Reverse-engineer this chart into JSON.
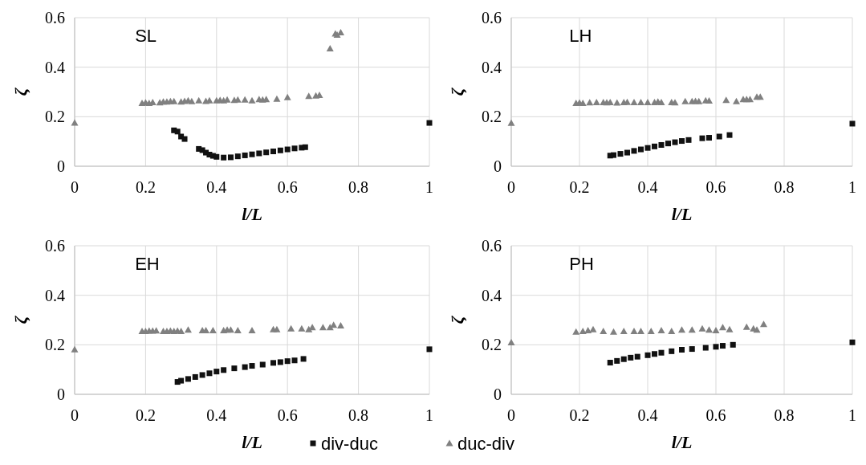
{
  "chart_data": [
    {
      "type": "scatter",
      "title": "SL",
      "xlabel": "l/L",
      "ylabel": "ζ",
      "xlim": [
        0,
        1
      ],
      "ylim": [
        0,
        0.6
      ],
      "xticks": [
        0,
        0.2,
        0.4,
        0.6,
        0.8,
        1
      ],
      "yticks": [
        0,
        0.2,
        0.4,
        0.6
      ],
      "grid": true,
      "series": [
        {
          "color": "#111111",
          "marker": "square",
          "x": [
            0.28,
            0.29,
            0.3,
            0.31,
            0.35,
            0.36,
            0.37,
            0.38,
            0.39,
            0.4,
            0.42,
            0.44,
            0.46,
            0.48,
            0.5,
            0.52,
            0.54,
            0.56,
            0.58,
            0.6,
            0.62,
            0.64,
            0.65,
            1.0
          ],
          "values": [
            0.145,
            0.14,
            0.12,
            0.11,
            0.07,
            0.065,
            0.055,
            0.047,
            0.042,
            0.038,
            0.035,
            0.036,
            0.04,
            0.044,
            0.048,
            0.052,
            0.056,
            0.06,
            0.064,
            0.068,
            0.072,
            0.075,
            0.077,
            0.175
          ]
        },
        {
          "color": "#808080",
          "marker": "triangle",
          "x": [
            0,
            0.19,
            0.2,
            0.21,
            0.22,
            0.24,
            0.25,
            0.26,
            0.27,
            0.28,
            0.3,
            0.31,
            0.32,
            0.33,
            0.35,
            0.37,
            0.38,
            0.4,
            0.41,
            0.42,
            0.43,
            0.45,
            0.46,
            0.48,
            0.5,
            0.52,
            0.53,
            0.54,
            0.57,
            0.6,
            0.66,
            0.68,
            0.69,
            0.72,
            0.735,
            0.74,
            0.75
          ],
          "values": [
            0.175,
            0.255,
            0.257,
            0.255,
            0.258,
            0.257,
            0.26,
            0.26,
            0.262,
            0.262,
            0.26,
            0.263,
            0.265,
            0.262,
            0.265,
            0.263,
            0.265,
            0.265,
            0.267,
            0.265,
            0.268,
            0.267,
            0.268,
            0.268,
            0.265,
            0.27,
            0.268,
            0.27,
            0.272,
            0.278,
            0.283,
            0.285,
            0.287,
            0.475,
            0.535,
            0.53,
            0.54
          ]
        }
      ]
    },
    {
      "type": "scatter",
      "title": "LH",
      "xlabel": "l/L",
      "ylabel": "ζ",
      "xlim": [
        0,
        1
      ],
      "ylim": [
        0,
        0.6
      ],
      "xticks": [
        0,
        0.2,
        0.4,
        0.6,
        0.8,
        1
      ],
      "yticks": [
        0,
        0.2,
        0.4,
        0.6
      ],
      "grid": true,
      "series": [
        {
          "color": "#111111",
          "marker": "square",
          "x": [
            0.29,
            0.3,
            0.32,
            0.34,
            0.36,
            0.38,
            0.4,
            0.42,
            0.44,
            0.46,
            0.48,
            0.5,
            0.52,
            0.56,
            0.58,
            0.61,
            0.64,
            1.0
          ],
          "values": [
            0.043,
            0.045,
            0.05,
            0.055,
            0.062,
            0.068,
            0.074,
            0.08,
            0.086,
            0.092,
            0.097,
            0.102,
            0.106,
            0.113,
            0.115,
            0.12,
            0.126,
            0.172
          ]
        },
        {
          "color": "#808080",
          "marker": "triangle",
          "x": [
            0,
            0.19,
            0.2,
            0.21,
            0.23,
            0.25,
            0.27,
            0.28,
            0.29,
            0.31,
            0.33,
            0.34,
            0.36,
            0.38,
            0.4,
            0.42,
            0.43,
            0.44,
            0.47,
            0.48,
            0.51,
            0.53,
            0.54,
            0.55,
            0.57,
            0.58,
            0.63,
            0.66,
            0.68,
            0.69,
            0.7,
            0.72,
            0.73
          ],
          "values": [
            0.174,
            0.255,
            0.256,
            0.255,
            0.257,
            0.258,
            0.258,
            0.257,
            0.258,
            0.256,
            0.258,
            0.259,
            0.258,
            0.258,
            0.258,
            0.258,
            0.26,
            0.258,
            0.258,
            0.257,
            0.262,
            0.262,
            0.263,
            0.262,
            0.265,
            0.264,
            0.267,
            0.262,
            0.27,
            0.27,
            0.27,
            0.28,
            0.28
          ]
        }
      ]
    },
    {
      "type": "scatter",
      "title": "EH",
      "xlabel": "l/L",
      "ylabel": "ζ",
      "xlim": [
        0,
        1
      ],
      "ylim": [
        0,
        0.6
      ],
      "xticks": [
        0,
        0.2,
        0.4,
        0.6,
        0.8,
        1
      ],
      "yticks": [
        0,
        0.2,
        0.4,
        0.6
      ],
      "grid": true,
      "legend": "bottom",
      "series": [
        {
          "name": "div-duc",
          "color": "#111111",
          "marker": "square",
          "x": [
            0.29,
            0.3,
            0.32,
            0.34,
            0.36,
            0.38,
            0.4,
            0.42,
            0.45,
            0.48,
            0.5,
            0.53,
            0.56,
            0.58,
            0.6,
            0.62,
            0.645,
            1.0
          ],
          "values": [
            0.05,
            0.055,
            0.062,
            0.07,
            0.078,
            0.085,
            0.092,
            0.098,
            0.105,
            0.11,
            0.115,
            0.12,
            0.127,
            0.13,
            0.134,
            0.137,
            0.143,
            0.182
          ]
        },
        {
          "name": "duc-div",
          "color": "#808080",
          "marker": "triangle",
          "x": [
            0,
            0.19,
            0.2,
            0.21,
            0.22,
            0.23,
            0.25,
            0.26,
            0.27,
            0.28,
            0.29,
            0.3,
            0.32,
            0.36,
            0.37,
            0.39,
            0.42,
            0.43,
            0.44,
            0.46,
            0.5,
            0.56,
            0.57,
            0.61,
            0.64,
            0.66,
            0.67,
            0.7,
            0.72,
            0.73,
            0.75
          ],
          "values": [
            0.181,
            0.255,
            0.255,
            0.256,
            0.256,
            0.257,
            0.255,
            0.255,
            0.256,
            0.255,
            0.256,
            0.255,
            0.26,
            0.258,
            0.258,
            0.258,
            0.258,
            0.26,
            0.26,
            0.258,
            0.258,
            0.262,
            0.262,
            0.265,
            0.265,
            0.262,
            0.27,
            0.27,
            0.27,
            0.28,
            0.277
          ]
        }
      ]
    },
    {
      "type": "scatter",
      "title": "PH",
      "xlabel": "l/L",
      "ylabel": "ζ",
      "xlim": [
        0,
        1
      ],
      "ylim": [
        0,
        0.6
      ],
      "xticks": [
        0,
        0.2,
        0.4,
        0.6,
        0.8,
        1
      ],
      "yticks": [
        0,
        0.2,
        0.4,
        0.6
      ],
      "grid": true,
      "series": [
        {
          "color": "#111111",
          "marker": "square",
          "x": [
            0.29,
            0.31,
            0.33,
            0.35,
            0.37,
            0.4,
            0.42,
            0.44,
            0.47,
            0.5,
            0.53,
            0.57,
            0.6,
            0.62,
            0.65,
            1.0
          ],
          "values": [
            0.128,
            0.135,
            0.142,
            0.148,
            0.152,
            0.158,
            0.163,
            0.168,
            0.174,
            0.18,
            0.183,
            0.188,
            0.192,
            0.196,
            0.2,
            0.21
          ]
        },
        {
          "color": "#808080",
          "marker": "triangle",
          "x": [
            0,
            0.19,
            0.21,
            0.225,
            0.24,
            0.27,
            0.3,
            0.33,
            0.36,
            0.38,
            0.41,
            0.44,
            0.47,
            0.5,
            0.53,
            0.56,
            0.58,
            0.6,
            0.62,
            0.64,
            0.69,
            0.71,
            0.72,
            0.74
          ],
          "values": [
            0.209,
            0.252,
            0.255,
            0.258,
            0.262,
            0.255,
            0.252,
            0.255,
            0.255,
            0.255,
            0.255,
            0.258,
            0.255,
            0.26,
            0.26,
            0.265,
            0.26,
            0.258,
            0.27,
            0.262,
            0.272,
            0.265,
            0.26,
            0.283
          ]
        }
      ]
    }
  ]
}
